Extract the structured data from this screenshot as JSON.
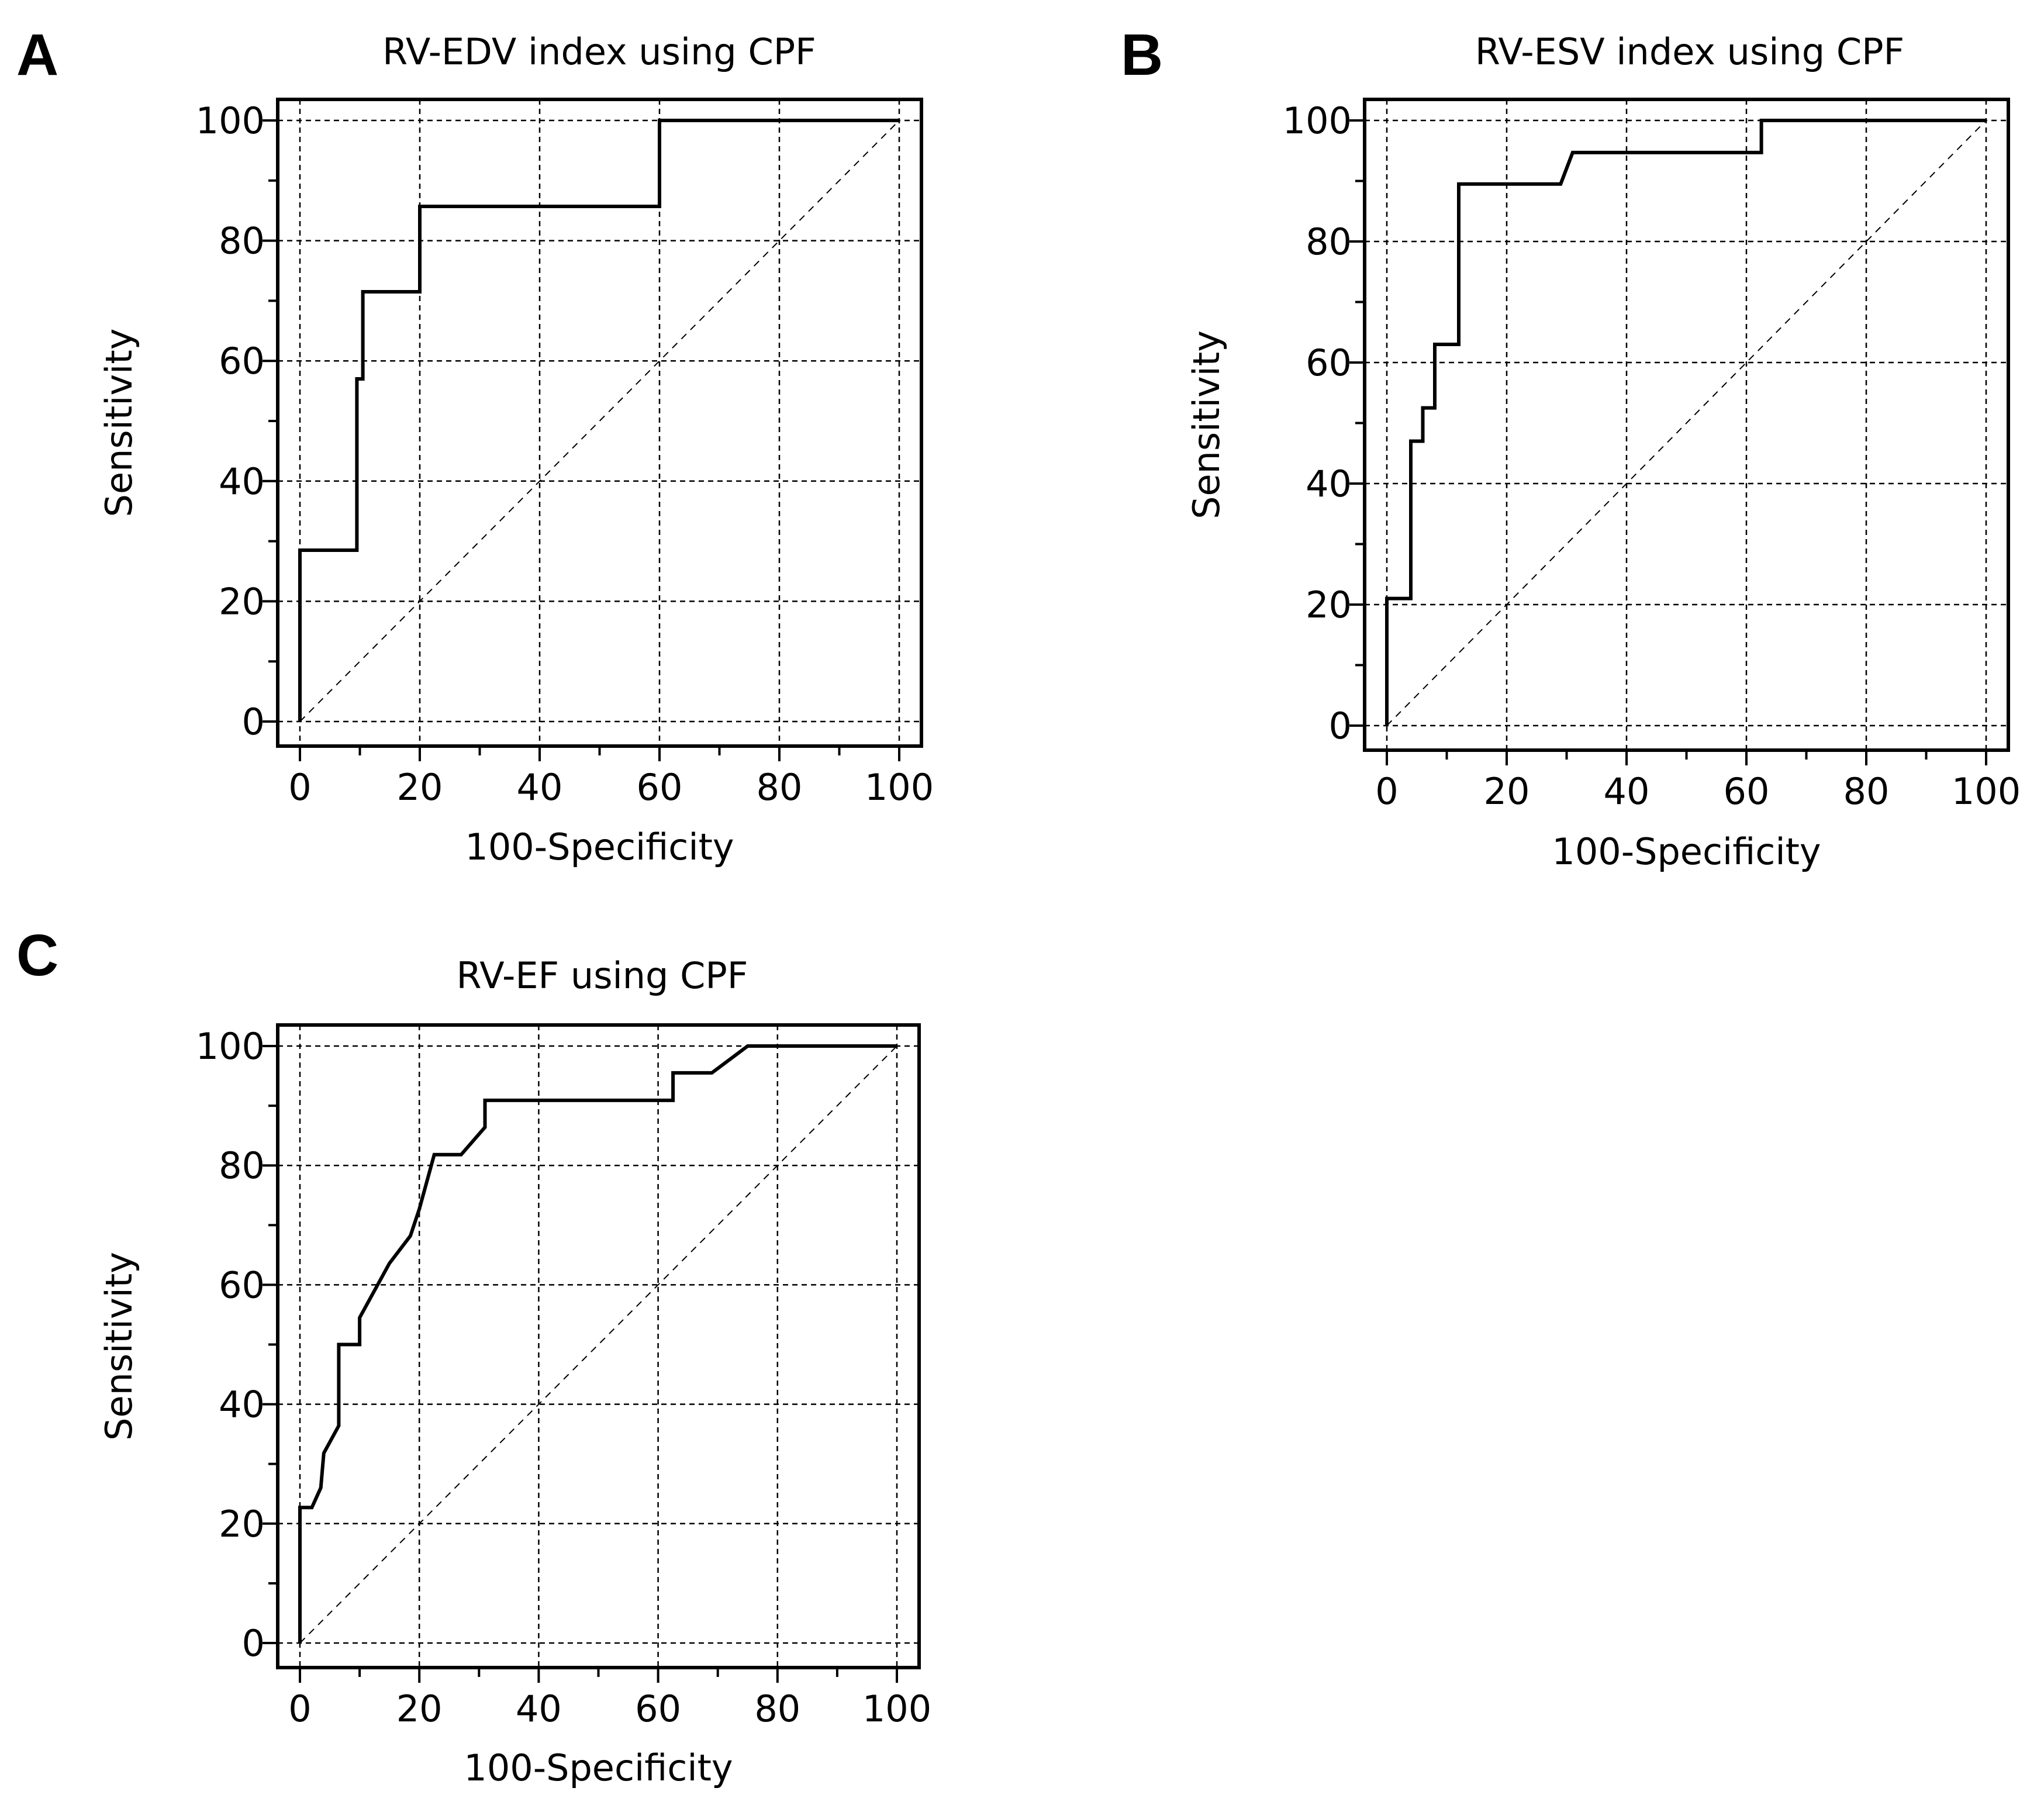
{
  "chart_data": [
    {
      "type": "line",
      "panel": "A",
      "title": "RV-EDV index using CPF",
      "xlabel": "100-Specificity",
      "ylabel": "Sensitivity",
      "xlim": [
        0,
        100
      ],
      "ylim": [
        0,
        100
      ],
      "xticks": [
        "0",
        "20",
        "40",
        "60",
        "80",
        "100"
      ],
      "yticks": [
        "0",
        "20",
        "40",
        "60",
        "80",
        "100"
      ],
      "grid": true,
      "diagonal_reference": true,
      "series": [
        {
          "name": "ROC",
          "x": [
            0,
            0,
            9.5,
            9.5,
            10.5,
            10.5,
            20,
            20,
            60,
            60,
            100
          ],
          "y": [
            0,
            28.5,
            28.5,
            57,
            57,
            71.5,
            71.5,
            85.7,
            85.7,
            100,
            100
          ]
        }
      ]
    },
    {
      "type": "line",
      "panel": "B",
      "title": "RV-ESV index using CPF",
      "xlabel": "100-Specificity",
      "ylabel": "Sensitivity",
      "xlim": [
        0,
        100
      ],
      "ylim": [
        0,
        100
      ],
      "xticks": [
        "0",
        "20",
        "40",
        "60",
        "80",
        "100"
      ],
      "yticks": [
        "0",
        "20",
        "40",
        "60",
        "80",
        "100"
      ],
      "grid": true,
      "diagonal_reference": true,
      "series": [
        {
          "name": "ROC",
          "x": [
            0,
            0,
            4,
            4,
            6,
            6,
            8,
            8,
            12,
            12,
            29,
            31,
            62.5,
            62.5,
            100
          ],
          "y": [
            0,
            21,
            21,
            47,
            47,
            52.5,
            52.5,
            63,
            63,
            89.5,
            89.5,
            94.7,
            94.7,
            100,
            100
          ]
        }
      ]
    },
    {
      "type": "line",
      "panel": "C",
      "title": "RV-EF using CPF",
      "xlabel": "100-Specificity",
      "ylabel": "Sensitivity",
      "xlim": [
        0,
        100
      ],
      "ylim": [
        0,
        100
      ],
      "xticks": [
        "0",
        "20",
        "40",
        "60",
        "80",
        "100"
      ],
      "yticks": [
        "0",
        "20",
        "40",
        "60",
        "80",
        "100"
      ],
      "grid": true,
      "diagonal_reference": true,
      "series": [
        {
          "name": "ROC",
          "x": [
            0,
            0,
            2,
            3.5,
            4,
            6.5,
            6.5,
            10,
            10,
            15,
            18.5,
            20,
            22.5,
            27,
            31,
            31,
            62.5,
            62.5,
            69,
            75,
            100
          ],
          "y": [
            0,
            22.7,
            22.7,
            26,
            31.8,
            36.4,
            50,
            50,
            54.5,
            63.6,
            68.2,
            72.7,
            81.8,
            81.8,
            86.4,
            90.9,
            90.9,
            95.5,
            95.5,
            100,
            100
          ]
        }
      ]
    }
  ]
}
